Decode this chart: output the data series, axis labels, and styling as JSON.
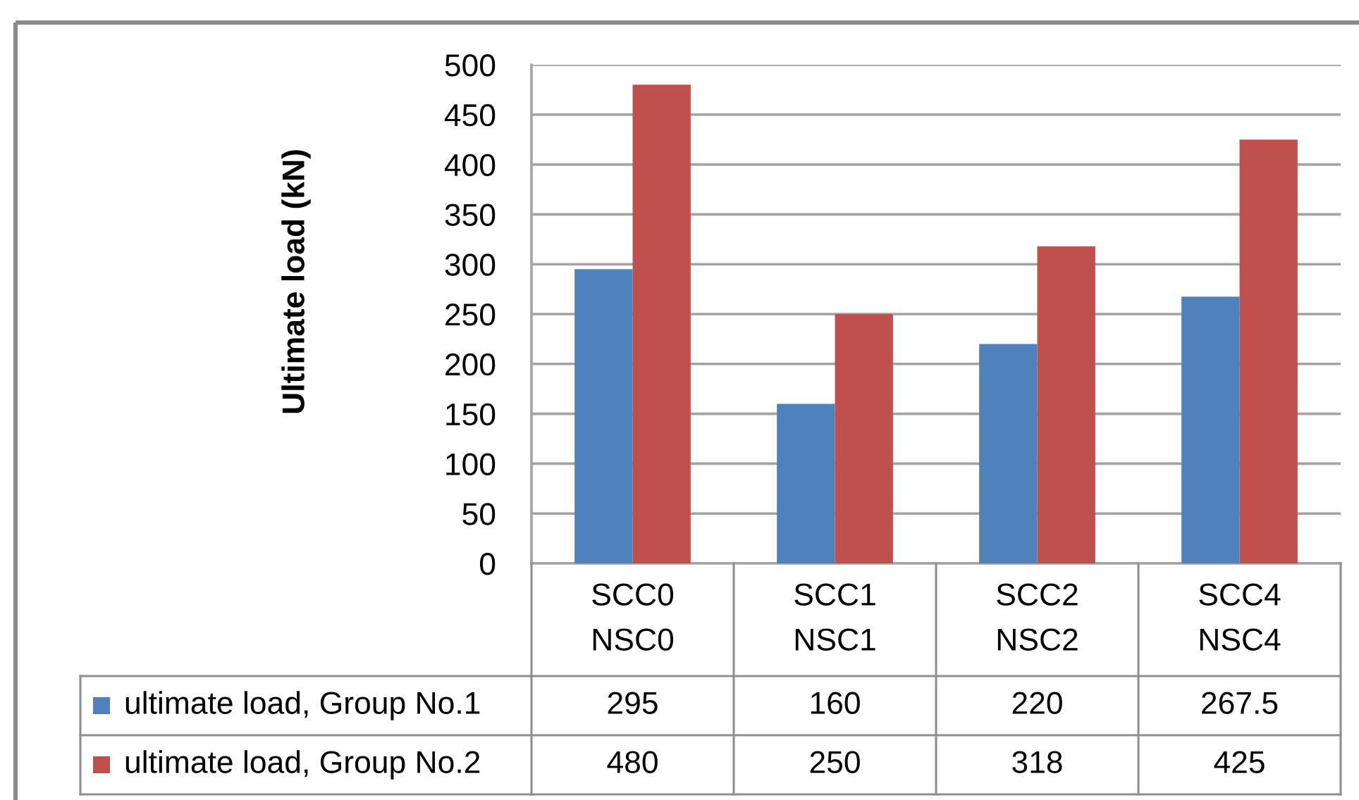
{
  "chart_data": {
    "type": "bar",
    "ylabel": "Ultimate load (kN)",
    "categories": [
      "SCC0\nNSC0",
      "SCC1\nNSC1",
      "SCC2\nNSC2",
      "SCC4\nNSC4"
    ],
    "series": [
      {
        "name": "ultimate load, Group No.1",
        "color": "#4f81bd",
        "values": [
          295,
          160,
          220,
          267.5
        ]
      },
      {
        "name": "ultimate load, Group No.2",
        "color": "#c0504d",
        "values": [
          480,
          250,
          318,
          425
        ]
      }
    ],
    "ylim": [
      0,
      500
    ],
    "yticks": [
      0,
      50,
      100,
      150,
      200,
      250,
      300,
      350,
      400,
      450,
      500
    ],
    "grid": "y",
    "legend": "bottom",
    "data_labels": true
  }
}
